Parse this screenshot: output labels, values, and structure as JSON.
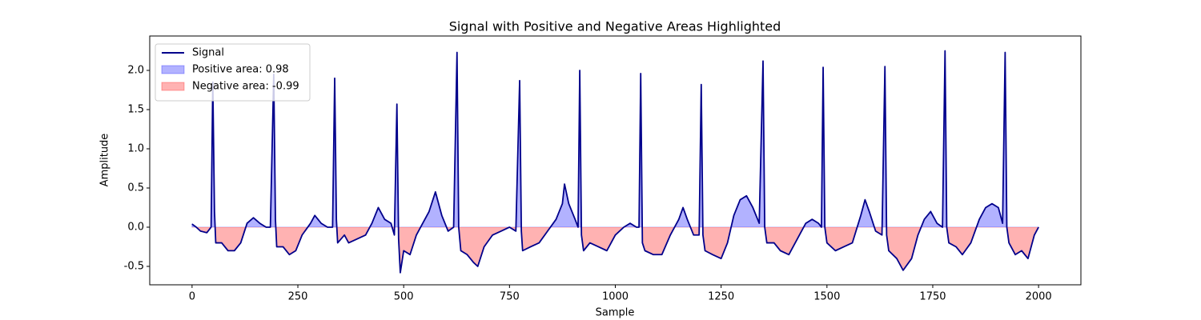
{
  "chart_data": {
    "type": "line",
    "title": "Signal with Positive and Negative Areas Highlighted",
    "xlabel": "Sample",
    "ylabel": "Amplitude",
    "xlim": [
      -100,
      2100
    ],
    "ylim": [
      -0.735,
      2.439
    ],
    "xticks": [
      0,
      250,
      500,
      750,
      1000,
      1250,
      1500,
      1750,
      2000
    ],
    "yticks": [
      -0.5,
      {
        "value": 0,
        "label": "0.0"
      },
      0.5,
      {
        "value": 1,
        "label": "1.0"
      },
      1.5,
      {
        "value": 2,
        "label": "2.0"
      }
    ],
    "legend": "upper left",
    "fill_alpha": 0.3,
    "x": [
      0,
      10,
      20,
      35,
      45,
      49,
      53,
      56,
      70,
      85,
      100,
      115,
      130,
      145,
      160,
      175,
      185,
      193,
      197,
      200,
      215,
      230,
      245,
      260,
      280,
      290,
      305,
      320,
      332,
      337,
      341,
      344,
      360,
      370,
      390,
      410,
      425,
      440,
      455,
      470,
      478,
      484,
      488,
      492,
      500,
      515,
      530,
      545,
      560,
      575,
      590,
      605,
      618,
      626,
      630,
      635,
      650,
      665,
      675,
      690,
      710,
      730,
      750,
      765,
      774,
      778,
      781,
      800,
      820,
      840,
      860,
      875,
      880,
      890,
      905,
      912,
      916,
      920,
      925,
      940,
      960,
      980,
      1000,
      1020,
      1035,
      1050,
      1056,
      1060,
      1064,
      1070,
      1090,
      1110,
      1130,
      1150,
      1160,
      1170,
      1185,
      1198,
      1203,
      1207,
      1212,
      1230,
      1250,
      1265,
      1280,
      1295,
      1310,
      1325,
      1340,
      1349,
      1353,
      1358,
      1375,
      1390,
      1410,
      1430,
      1450,
      1465,
      1480,
      1487,
      1491,
      1495,
      1500,
      1520,
      1540,
      1560,
      1580,
      1590,
      1600,
      1615,
      1630,
      1637,
      1641,
      1646,
      1665,
      1680,
      1700,
      1715,
      1730,
      1745,
      1760,
      1773,
      1779,
      1783,
      1788,
      1805,
      1820,
      1840,
      1860,
      1875,
      1890,
      1905,
      1915,
      1921,
      1925,
      1930,
      1945,
      1960,
      1975,
      1990,
      2000
    ],
    "series": [
      {
        "name": "Signal",
        "color": "#00008b",
        "values": [
          0.04,
          0.0,
          -0.05,
          -0.07,
          0.0,
          1.85,
          0.2,
          -0.2,
          -0.2,
          -0.3,
          -0.3,
          -0.2,
          0.05,
          0.12,
          0.05,
          0.0,
          0.0,
          1.95,
          0.1,
          -0.25,
          -0.25,
          -0.35,
          -0.3,
          -0.1,
          0.05,
          0.15,
          0.05,
          0.0,
          0.0,
          1.9,
          0.1,
          -0.2,
          -0.1,
          -0.2,
          -0.15,
          -0.1,
          0.05,
          0.25,
          0.1,
          0.05,
          -0.1,
          1.57,
          -0.15,
          -0.58,
          -0.3,
          -0.35,
          -0.1,
          0.05,
          0.2,
          0.45,
          0.15,
          -0.05,
          0.0,
          2.23,
          0.0,
          -0.3,
          -0.35,
          -0.45,
          -0.5,
          -0.25,
          -0.1,
          -0.05,
          0.0,
          -0.05,
          1.87,
          -0.05,
          -0.3,
          -0.25,
          -0.2,
          -0.05,
          0.1,
          0.3,
          0.55,
          0.3,
          0.1,
          0.0,
          2.0,
          -0.1,
          -0.3,
          -0.2,
          -0.25,
          -0.3,
          -0.1,
          0.0,
          0.05,
          0.0,
          0.0,
          1.96,
          -0.2,
          -0.3,
          -0.35,
          -0.35,
          -0.1,
          0.1,
          0.25,
          0.1,
          -0.1,
          -0.1,
          1.82,
          -0.1,
          -0.3,
          -0.35,
          -0.4,
          -0.2,
          0.15,
          0.35,
          0.4,
          0.25,
          0.05,
          2.12,
          0.0,
          -0.2,
          -0.2,
          -0.3,
          -0.35,
          -0.15,
          0.05,
          0.1,
          0.05,
          0.0,
          2.04,
          0.0,
          -0.2,
          -0.3,
          -0.25,
          -0.2,
          0.15,
          0.35,
          0.2,
          -0.05,
          -0.1,
          2.05,
          -0.1,
          -0.3,
          -0.4,
          -0.55,
          -0.4,
          -0.1,
          0.1,
          0.2,
          0.05,
          0.0,
          2.25,
          0.0,
          -0.2,
          -0.25,
          -0.35,
          -0.2,
          0.1,
          0.25,
          0.3,
          0.25,
          0.05,
          2.23,
          0.0,
          -0.2,
          -0.35,
          -0.3,
          -0.4,
          -0.1,
          0.0
        ]
      }
    ],
    "fills": [
      {
        "name": "Positive area: 0.98",
        "color": "#0000ff",
        "side": "above"
      },
      {
        "name": "Negative area: -0.99",
        "color": "#ff0000",
        "side": "below"
      }
    ]
  }
}
